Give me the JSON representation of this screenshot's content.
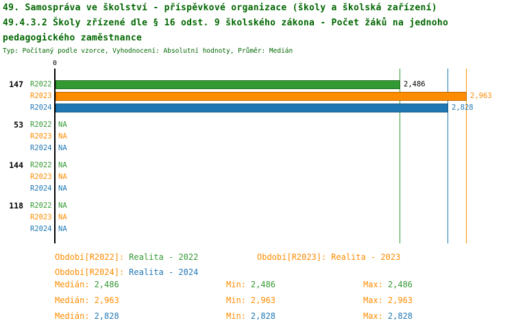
{
  "colors": {
    "title": "#006600",
    "label": "#ff8c00",
    "axis": "#000000",
    "group_label": "#000000",
    "series": {
      "R2022": "#339933",
      "R2023": "#ff8c00",
      "R2024": "#1f77b4"
    }
  },
  "chart_data": {
    "type": "bar",
    "orientation": "horizontal",
    "title_lines": [
      "49. Samospráva ve školství - příspěvkové organizace (školy a školská zařízení)",
      "49.4.3.2 Školy zřízené dle § 16 odst. 9 školského zákona - Počet žáků na jednoho",
      "pedagogického zaměstnance"
    ],
    "subtitle": "Typ: Počítaný podle vzorce, Vyhodnocení: Absolutní hodnoty, Průměr: Medián",
    "x_axis": {
      "min": 0,
      "max": 2.963,
      "zero_label": "0",
      "gridlines": false
    },
    "series_names": [
      "R2022",
      "R2023",
      "R2024"
    ],
    "groups": [
      {
        "label": "147",
        "bars": [
          {
            "series": "R2022",
            "value": 2.486,
            "display": "2,486",
            "value_color": "#000000"
          },
          {
            "series": "R2023",
            "value": 2.963,
            "display": "2,963",
            "value_color": "#ff8c00"
          },
          {
            "series": "R2024",
            "value": 2.828,
            "display": "2,828",
            "value_color": "#1f77b4"
          }
        ]
      },
      {
        "label": "53",
        "bars": [
          {
            "series": "R2022",
            "value": null,
            "display": "NA"
          },
          {
            "series": "R2023",
            "value": null,
            "display": "NA"
          },
          {
            "series": "R2024",
            "value": null,
            "display": "NA"
          }
        ]
      },
      {
        "label": "144",
        "bars": [
          {
            "series": "R2022",
            "value": null,
            "display": "NA"
          },
          {
            "series": "R2023",
            "value": null,
            "display": "NA"
          },
          {
            "series": "R2024",
            "value": null,
            "display": "NA"
          }
        ]
      },
      {
        "label": "118",
        "bars": [
          {
            "series": "R2022",
            "value": null,
            "display": "NA"
          },
          {
            "series": "R2023",
            "value": null,
            "display": "NA"
          },
          {
            "series": "R2024",
            "value": null,
            "display": "NA"
          }
        ]
      }
    ],
    "reference_lines": [
      {
        "series": "R2022",
        "value": 2.486
      },
      {
        "series": "R2024",
        "value": 2.828
      },
      {
        "series": "R2023",
        "value": 2.963
      }
    ],
    "legend": [
      {
        "label": "Období[R2022]:",
        "value": "Realita - 2022",
        "series": "R2022"
      },
      {
        "label": "Období[R2023]:",
        "value": "Realita - 2023",
        "series": "R2023"
      },
      {
        "label": "Období[R2024]:",
        "value": "Realita - 2024",
        "series": "R2024"
      }
    ],
    "stats": [
      {
        "series": "R2022",
        "median_label": "Medián:",
        "median": "2,486",
        "min_label": "Min:",
        "min": "2,486",
        "max_label": "Max:",
        "max": "2,486"
      },
      {
        "series": "R2023",
        "median_label": "Medián:",
        "median": "2,963",
        "min_label": "Min:",
        "min": "2,963",
        "max_label": "Max:",
        "max": "2,963"
      },
      {
        "series": "R2024",
        "median_label": "Medián:",
        "median": "2,828",
        "min_label": "Min:",
        "min": "2,828",
        "max_label": "Max:",
        "max": "2,828"
      }
    ]
  }
}
